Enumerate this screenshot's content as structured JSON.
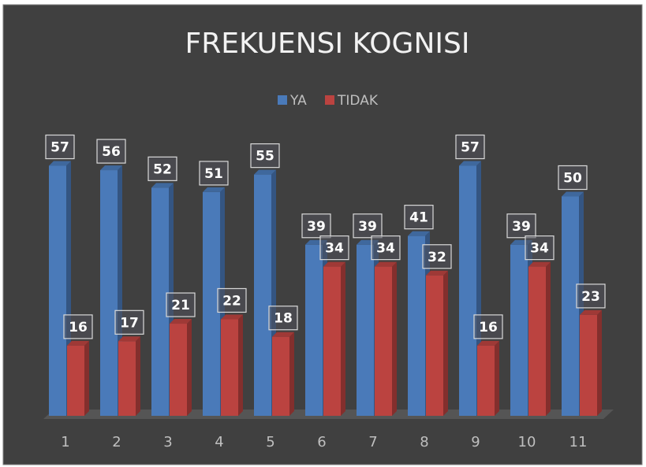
{
  "chart_data": {
    "type": "bar3d",
    "title": "FREKUENSI KOGNISI",
    "categories": [
      "1",
      "2",
      "3",
      "4",
      "5",
      "6",
      "7",
      "8",
      "9",
      "10",
      "11"
    ],
    "series": [
      {
        "name": "YA",
        "color": "#4a7ab9",
        "values": [
          57,
          56,
          52,
          51,
          55,
          39,
          39,
          41,
          57,
          39,
          50
        ]
      },
      {
        "name": "TIDAK",
        "color": "#bb4340",
        "values": [
          16,
          17,
          21,
          22,
          18,
          34,
          34,
          32,
          16,
          34,
          23
        ]
      }
    ],
    "legend": "top"
  }
}
